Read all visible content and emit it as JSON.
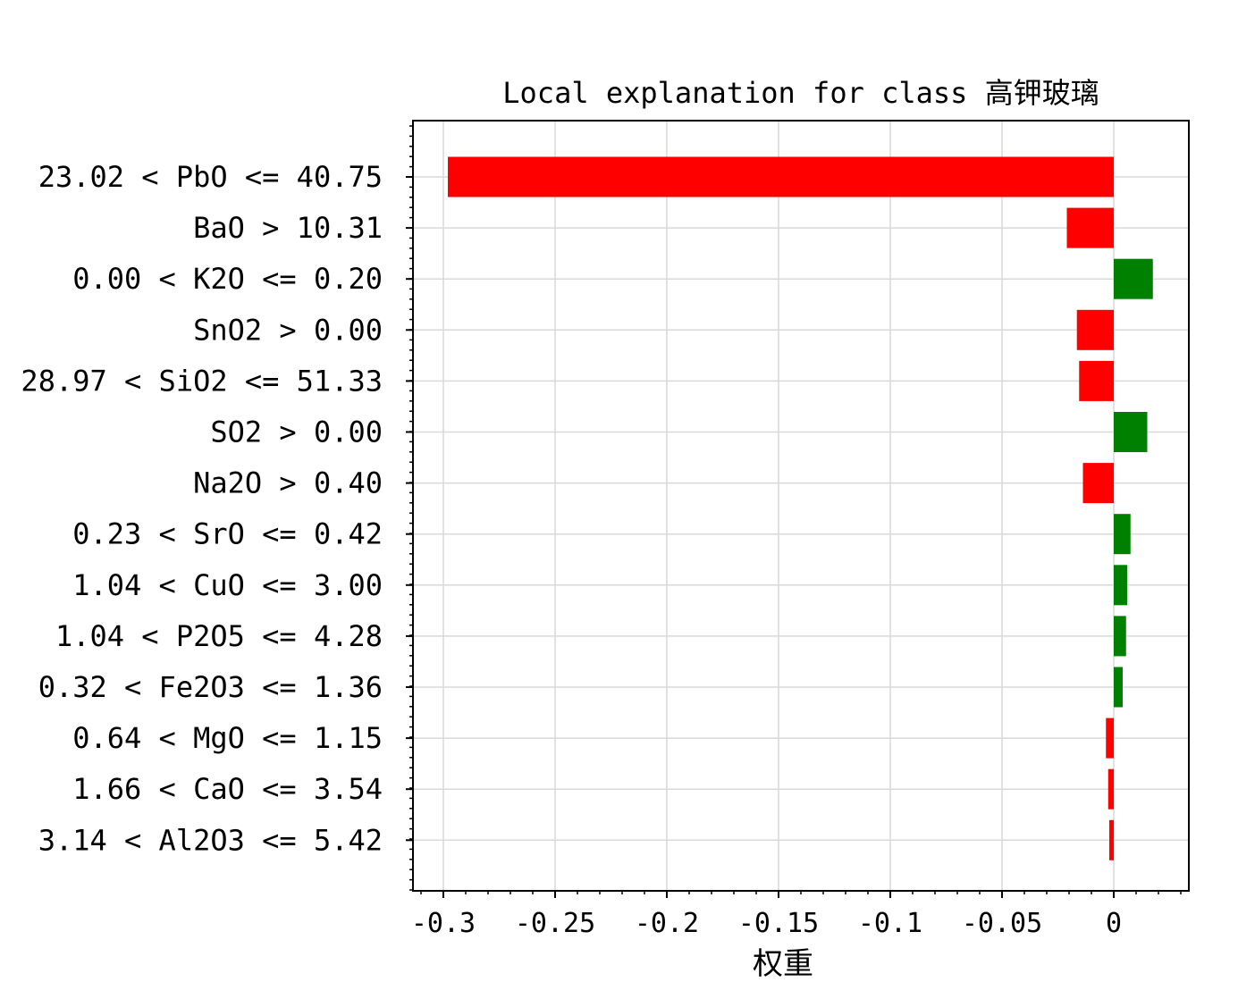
{
  "chart_data": {
    "type": "bar",
    "orientation": "horizontal",
    "title": "Local explanation for class 高钾玻璃",
    "xlabel": "权重",
    "ylabel": "",
    "xlim": [
      -0.313,
      0.034
    ],
    "xticks": [
      -0.3,
      -0.25,
      -0.2,
      -0.15,
      -0.1,
      -0.05,
      0
    ],
    "xtick_labels": [
      "-0.3",
      "-0.25",
      "-0.2",
      "-0.15",
      "-0.1",
      "-0.05",
      "0"
    ],
    "grid": true,
    "colors": {
      "positive": "#008000",
      "negative": "#ff0000"
    },
    "categories": [
      "23.02 < PbO <= 40.75",
      "BaO > 10.31",
      "0.00 < K2O <= 0.20",
      "SnO2 > 0.00",
      "28.97 < SiO2 <= 51.33",
      "SO2 > 0.00",
      "Na2O > 0.40",
      "0.23 < SrO <= 0.42",
      "1.04 < CuO <= 3.00",
      "1.04 < P2O5 <= 4.28",
      "0.32 < Fe2O3 <= 1.36",
      "0.64 < MgO <= 1.15",
      "1.66 < CaO <= 3.54",
      "3.14 < Al2O3 <= 5.42"
    ],
    "values": [
      -0.298,
      -0.021,
      0.0175,
      -0.0165,
      -0.0155,
      0.015,
      -0.0138,
      0.0075,
      0.006,
      0.0055,
      0.004,
      -0.0035,
      -0.0025,
      -0.002
    ]
  }
}
